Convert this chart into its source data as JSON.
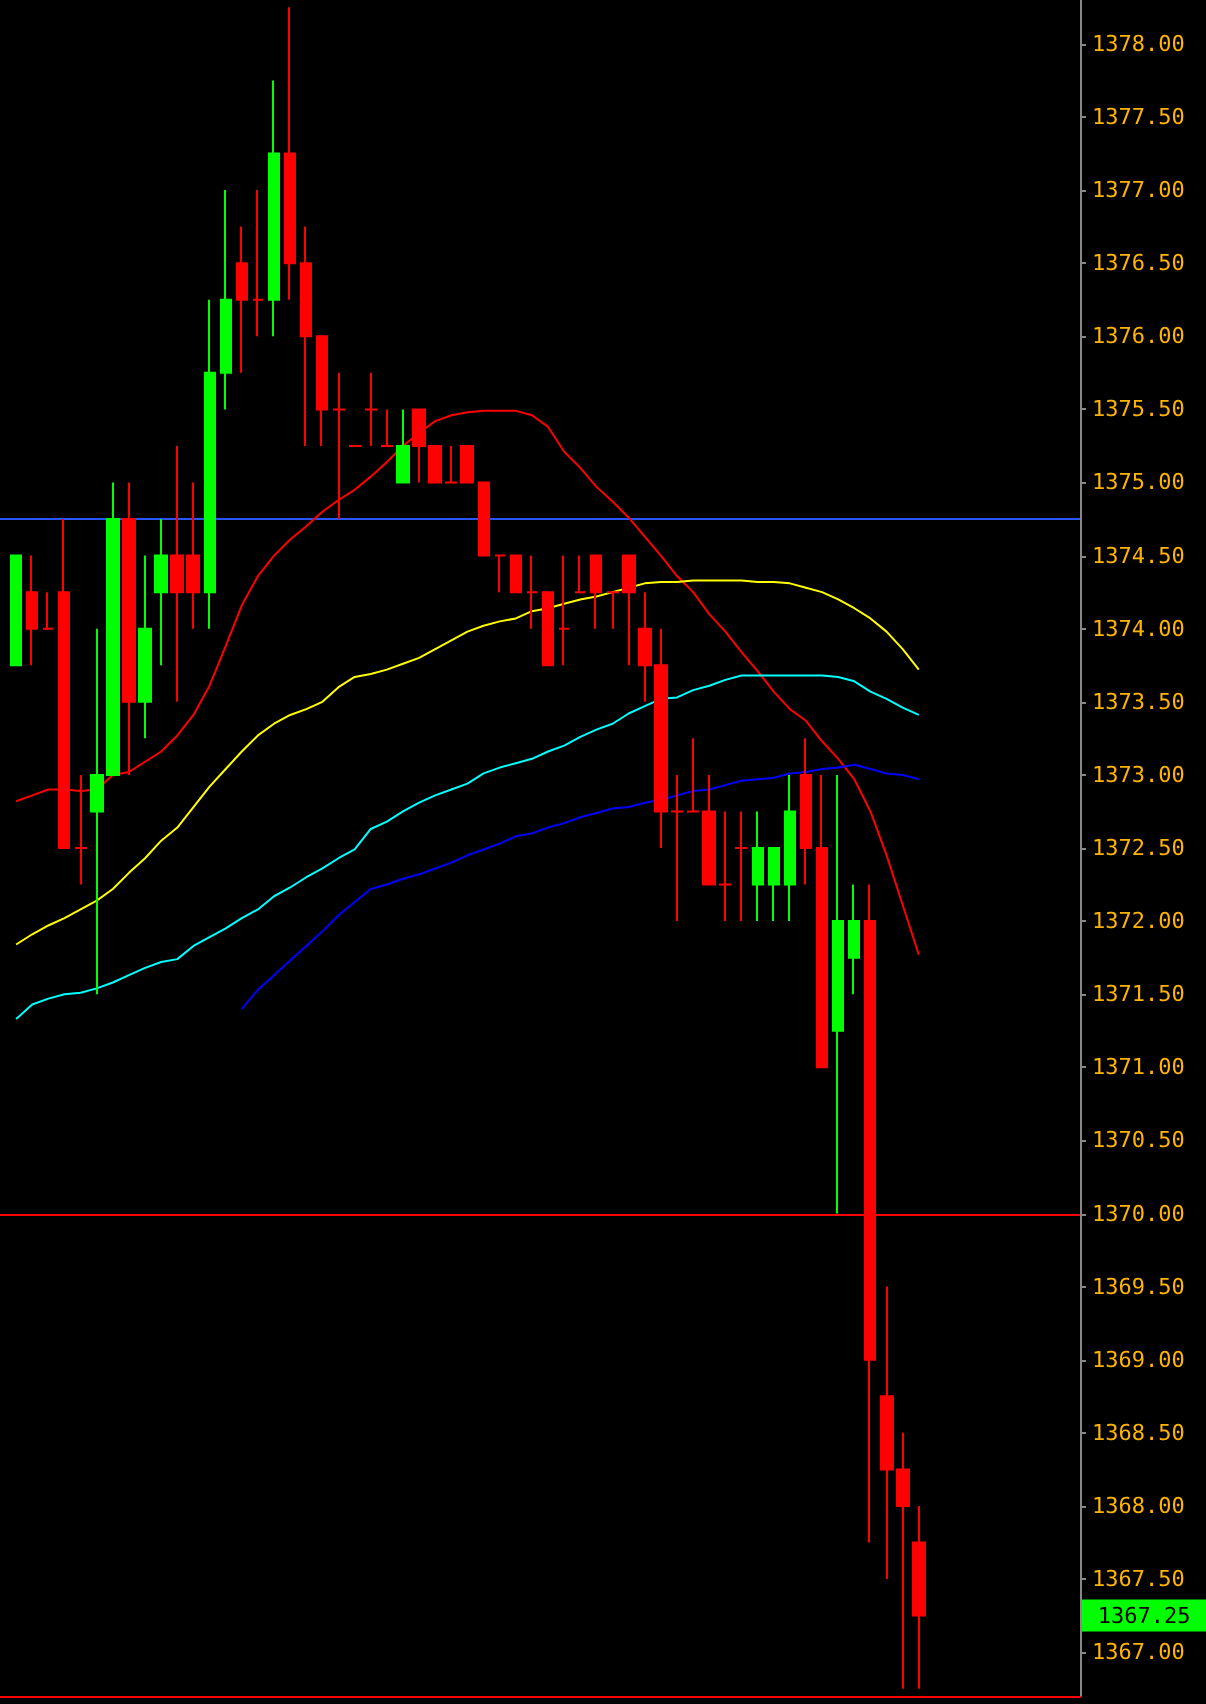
{
  "chart_data": {
    "type": "candlestick",
    "categories": [
      null,
      null,
      null,
      null,
      null,
      null,
      null,
      null,
      null,
      null,
      null,
      null,
      null,
      null,
      null,
      null,
      null,
      null,
      null,
      null,
      null,
      null,
      null,
      null,
      null,
      null,
      null,
      null,
      null,
      null,
      null,
      null,
      null,
      null,
      null,
      null,
      null,
      null,
      null,
      null,
      null,
      null,
      null,
      null,
      null,
      null,
      null,
      null,
      null,
      null,
      null,
      null,
      null,
      null,
      null,
      null,
      null
    ],
    "ohlc": [
      [
        1373.75,
        1374.5,
        1373.75,
        1374.5
      ],
      [
        1374.25,
        1374.5,
        1373.75,
        1374.0
      ],
      [
        1374.0,
        1374.25,
        1374.0,
        1374.0
      ],
      [
        1374.25,
        1374.75,
        1372.5,
        1372.5
      ],
      [
        1372.5,
        1373.0,
        1372.25,
        1372.5
      ],
      [
        1372.75,
        1374.0,
        1371.5,
        1373.0
      ],
      [
        1373.0,
        1375.0,
        1373.0,
        1374.75
      ],
      [
        1374.75,
        1375.0,
        1373.0,
        1373.5
      ],
      [
        1373.5,
        1374.5,
        1373.25,
        1374.0
      ],
      [
        1374.25,
        1374.75,
        1373.75,
        1374.5
      ],
      [
        1374.5,
        1375.25,
        1373.5,
        1374.25
      ],
      [
        1374.5,
        1375.0,
        1374.0,
        1374.25
      ],
      [
        1374.25,
        1376.25,
        1374.0,
        1375.75
      ],
      [
        1375.75,
        1377.0,
        1375.5,
        1376.25
      ],
      [
        1376.5,
        1376.75,
        1375.75,
        1376.25
      ],
      [
        1376.25,
        1377.0,
        1376.0,
        1376.25
      ],
      [
        1376.25,
        1377.75,
        1376.0,
        1377.25
      ],
      [
        1377.25,
        1378.25,
        1376.25,
        1376.5
      ],
      [
        1376.5,
        1376.75,
        1375.25,
        1376.0
      ],
      [
        1376.0,
        1376.0,
        1375.25,
        1375.5
      ],
      [
        1375.5,
        1375.75,
        1374.75,
        1375.5
      ],
      [
        1375.25,
        1375.25,
        1375.25,
        1375.25
      ],
      [
        1375.5,
        1375.75,
        1375.25,
        1375.5
      ],
      [
        1375.25,
        1375.5,
        1375.25,
        1375.25
      ],
      [
        1375.0,
        1375.5,
        1375.0,
        1375.25
      ],
      [
        1375.5,
        1375.5,
        1375.0,
        1375.25
      ],
      [
        1375.25,
        1375.25,
        1375.0,
        1375.0
      ],
      [
        1375.0,
        1375.25,
        1375.0,
        1375.0
      ],
      [
        1375.25,
        1375.25,
        1375.0,
        1375.0
      ],
      [
        1375.0,
        1375.0,
        1374.5,
        1374.5
      ],
      [
        1374.5,
        1374.5,
        1374.25,
        1374.5
      ],
      [
        1374.5,
        1374.5,
        1374.25,
        1374.25
      ],
      [
        1374.25,
        1374.5,
        1374.0,
        1374.25
      ],
      [
        1374.25,
        1374.25,
        1373.75,
        1373.75
      ],
      [
        1374.0,
        1374.5,
        1373.75,
        1374.0
      ],
      [
        1374.25,
        1374.5,
        1374.25,
        1374.25
      ],
      [
        1374.5,
        1374.5,
        1374.0,
        1374.25
      ],
      [
        1374.25,
        1374.25,
        1374.0,
        1374.25
      ],
      [
        1374.5,
        1374.5,
        1373.75,
        1374.25
      ],
      [
        1374.0,
        1374.25,
        1373.5,
        1373.75
      ],
      [
        1373.75,
        1374.0,
        1372.5,
        1372.75
      ],
      [
        1372.75,
        1373.0,
        1372.0,
        1372.75
      ],
      [
        1372.75,
        1373.25,
        1372.75,
        1372.75
      ],
      [
        1372.75,
        1373.0,
        1372.25,
        1372.25
      ],
      [
        1372.25,
        1372.75,
        1372.0,
        1372.25
      ],
      [
        1372.5,
        1372.75,
        1372.0,
        1372.5
      ],
      [
        1372.25,
        1372.75,
        1372.0,
        1372.5
      ],
      [
        1372.25,
        1372.5,
        1372.0,
        1372.5
      ],
      [
        1372.25,
        1373.0,
        1372.0,
        1372.75
      ],
      [
        1373.0,
        1373.25,
        1372.25,
        1372.5
      ],
      [
        1372.5,
        1373.0,
        1371.0,
        1371.0
      ],
      [
        1371.25,
        1373.0,
        1370.0,
        1372.0
      ],
      [
        1371.75,
        1372.25,
        1371.5,
        1372.0
      ],
      [
        1372.0,
        1372.25,
        1367.75,
        1369.0
      ],
      [
        1368.75,
        1369.5,
        1367.5,
        1368.25
      ],
      [
        1368.25,
        1368.5,
        1366.75,
        1368.0
      ],
      [
        1367.75,
        1368.0,
        1366.75,
        1367.25
      ]
    ],
    "colors": [
      "#00ff00",
      "#ff0000",
      "#ff0000",
      "#ff0000",
      "#ff0000",
      "#00ff00",
      "#00ff00",
      "#ff0000",
      "#00ff00",
      "#00ff00",
      "#ff0000",
      "#ff0000",
      "#00ff00",
      "#00ff00",
      "#ff0000",
      "#ff0000",
      "#00ff00",
      "#ff0000",
      "#ff0000",
      "#ff0000",
      "#ff0000",
      "#ff0000",
      "#ff0000",
      "#ff0000",
      "#00ff00",
      "#ff0000",
      "#ff0000",
      "#ff0000",
      "#ff0000",
      "#ff0000",
      "#ff0000",
      "#ff0000",
      "#ff0000",
      "#ff0000",
      "#ff0000",
      "#ff0000",
      "#ff0000",
      "#ff0000",
      "#ff0000",
      "#ff0000",
      "#ff0000",
      "#ff0000",
      "#ff0000",
      "#ff0000",
      "#ff0000",
      "#ff0000",
      "#00ff00",
      "#00ff00",
      "#00ff00",
      "#ff0000",
      "#ff0000",
      "#00ff00",
      "#00ff00",
      "#ff0000",
      "#ff0000",
      "#ff0000",
      "#ff0000"
    ],
    "series": [
      {
        "type": "line",
        "color": "#ff0000",
        "values": [
          1372.82,
          1372.86,
          1372.9,
          1372.9,
          1372.89,
          1372.9,
          1373.0,
          1373.02,
          1373.09,
          1373.16,
          1373.27,
          1373.41,
          1373.61,
          1373.88,
          1374.16,
          1374.36,
          1374.5,
          1374.61,
          1374.7,
          1374.8,
          1374.88,
          1374.95,
          1375.04,
          1375.14,
          1375.25,
          1375.34,
          1375.42,
          1375.46,
          1375.48,
          1375.49,
          1375.49,
          1375.49,
          1375.46,
          1375.38,
          1375.21,
          1375.1,
          1374.97,
          1374.87,
          1374.76,
          1374.63,
          1374.5,
          1374.36,
          1374.25,
          1374.1,
          1373.98,
          1373.84,
          1373.71,
          1373.57,
          1373.45,
          1373.37,
          1373.23,
          1373.11,
          1372.97,
          1372.75,
          1372.45,
          1372.11,
          1371.77
        ]
      },
      {
        "type": "line",
        "color": "#ffff00",
        "values": [
          1371.84,
          1371.91,
          1371.97,
          1372.02,
          1372.08,
          1372.14,
          1372.22,
          1372.33,
          1372.43,
          1372.55,
          1372.64,
          1372.78,
          1372.92,
          1373.04,
          1373.16,
          1373.27,
          1373.35,
          1373.41,
          1373.45,
          1373.5,
          1373.6,
          1373.67,
          1373.69,
          1373.72,
          1373.76,
          1373.8,
          1373.86,
          1373.92,
          1373.98,
          1374.02,
          1374.05,
          1374.07,
          1374.12,
          1374.14,
          1374.17,
          1374.2,
          1374.22,
          1374.25,
          1374.28,
          1374.31,
          1374.32,
          1374.32,
          1374.33,
          1374.33,
          1374.33,
          1374.33,
          1374.32,
          1374.32,
          1374.31,
          1374.28,
          1374.25,
          1374.2,
          1374.14,
          1374.07,
          1373.98,
          1373.86,
          1373.72
        ]
      },
      {
        "type": "line",
        "color": "#00ffff",
        "values": [
          1371.33,
          1371.43,
          1371.47,
          1371.5,
          1371.51,
          1371.54,
          1371.58,
          1371.63,
          1371.68,
          1371.72,
          1371.74,
          1371.83,
          1371.89,
          1371.95,
          1372.02,
          1372.08,
          1372.17,
          1372.23,
          1372.3,
          1372.36,
          1372.43,
          1372.49,
          1372.63,
          1372.68,
          1372.75,
          1372.81,
          1372.86,
          1372.9,
          1372.94,
          1373.01,
          1373.05,
          1373.08,
          1373.11,
          1373.16,
          1373.2,
          1373.26,
          1373.31,
          1373.35,
          1373.42,
          1373.47,
          1373.52,
          1373.53,
          1373.58,
          1373.61,
          1373.65,
          1373.68,
          1373.68,
          1373.68,
          1373.68,
          1373.68,
          1373.68,
          1373.67,
          1373.64,
          1373.57,
          1373.52,
          1373.46,
          1373.41
        ]
      },
      {
        "type": "line",
        "color": "#0000ff",
        "values": [
          null,
          null,
          null,
          null,
          null,
          null,
          null,
          null,
          null,
          null,
          null,
          null,
          null,
          null,
          1371.4,
          1371.53,
          1371.63,
          1371.73,
          1371.83,
          1371.93,
          1372.04,
          1372.13,
          1372.22,
          1372.25,
          1372.29,
          1372.32,
          1372.36,
          1372.4,
          1372.45,
          1372.49,
          1372.53,
          1372.58,
          1372.6,
          1372.64,
          1372.67,
          1372.71,
          1372.74,
          1372.77,
          1372.78,
          1372.81,
          1372.83,
          1372.86,
          1372.89,
          1372.9,
          1372.93,
          1372.96,
          1372.97,
          1372.98,
          1373.01,
          1373.02,
          1373.04,
          1373.05,
          1373.07,
          1373.04,
          1373.01,
          1373.0,
          1372.97
        ]
      }
    ],
    "ylim": [
      1366.7,
      1378.3
    ],
    "yticks": [
      {
        "value": 1367,
        "label": "1367.00"
      },
      {
        "value": 1367.5,
        "label": "1367.50"
      },
      {
        "value": 1368,
        "label": "1368.00"
      },
      {
        "value": 1368.5,
        "label": "1368.50"
      },
      {
        "value": 1369,
        "label": "1369.00"
      },
      {
        "value": 1369.5,
        "label": "1369.50"
      },
      {
        "value": 1370,
        "label": "1370.00"
      },
      {
        "value": 1370.5,
        "label": "1370.50"
      },
      {
        "value": 1371,
        "label": "1371.00"
      },
      {
        "value": 1371.5,
        "label": "1371.50"
      },
      {
        "value": 1372,
        "label": "1372.00"
      },
      {
        "value": 1372.5,
        "label": "1372.50"
      },
      {
        "value": 1373,
        "label": "1373.00"
      },
      {
        "value": 1373.5,
        "label": "1373.50"
      },
      {
        "value": 1374,
        "label": "1374.00"
      },
      {
        "value": 1374.5,
        "label": "1374.50"
      },
      {
        "value": 1375,
        "label": "1375.00"
      },
      {
        "value": 1375.5,
        "label": "1375.50"
      },
      {
        "value": 1376,
        "label": "1376.00"
      },
      {
        "value": 1376.5,
        "label": "1376.50"
      },
      {
        "value": 1377,
        "label": "1377.00"
      },
      {
        "value": 1377.5,
        "label": "1377.50"
      },
      {
        "value": 1378,
        "label": "1378.00"
      }
    ],
    "ref_lines": [
      {
        "axis": "y",
        "value": 1374.75,
        "color": "#2855ff"
      },
      {
        "axis": "y",
        "value": 1370,
        "color": "#ff0000"
      }
    ],
    "annotations": [
      "1367.25"
    ],
    "tick_labels": "y",
    "grid": false
  }
}
